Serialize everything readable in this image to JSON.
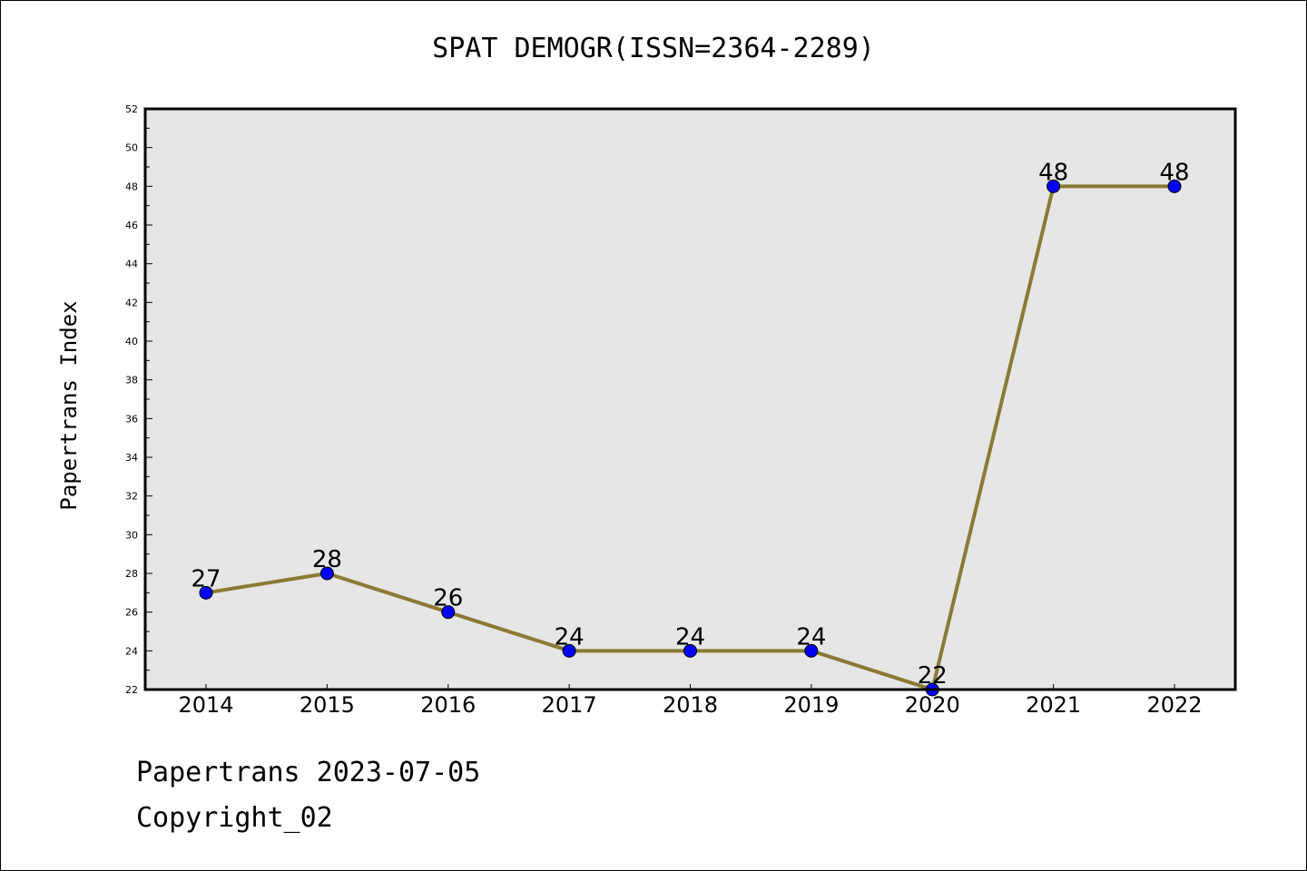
{
  "chart_data": {
    "type": "line",
    "title": "SPAT DEMOGR(ISSN=2364-2289)",
    "xlabel": "",
    "ylabel": "Papertrans Index",
    "categories": [
      "2014",
      "2015",
      "2016",
      "2017",
      "2018",
      "2019",
      "2020",
      "2021",
      "2022"
    ],
    "series": [
      {
        "values": [
          27,
          28,
          26,
          24,
          24,
          24,
          22,
          48,
          48
        ]
      }
    ],
    "ylim": [
      22,
      52
    ],
    "yticks": [
      22,
      24,
      26,
      28,
      30,
      32,
      34,
      36,
      38,
      40,
      42,
      44,
      46,
      48,
      50,
      52
    ],
    "grid": false,
    "legend": "none",
    "colors": {
      "line": "#8b7a35",
      "marker": "#0000ff",
      "plot_background": "#e6e6e6"
    }
  },
  "footer": {
    "date_text": "Papertrans 2023-07-05",
    "copyright_text": "Copyright_02"
  }
}
